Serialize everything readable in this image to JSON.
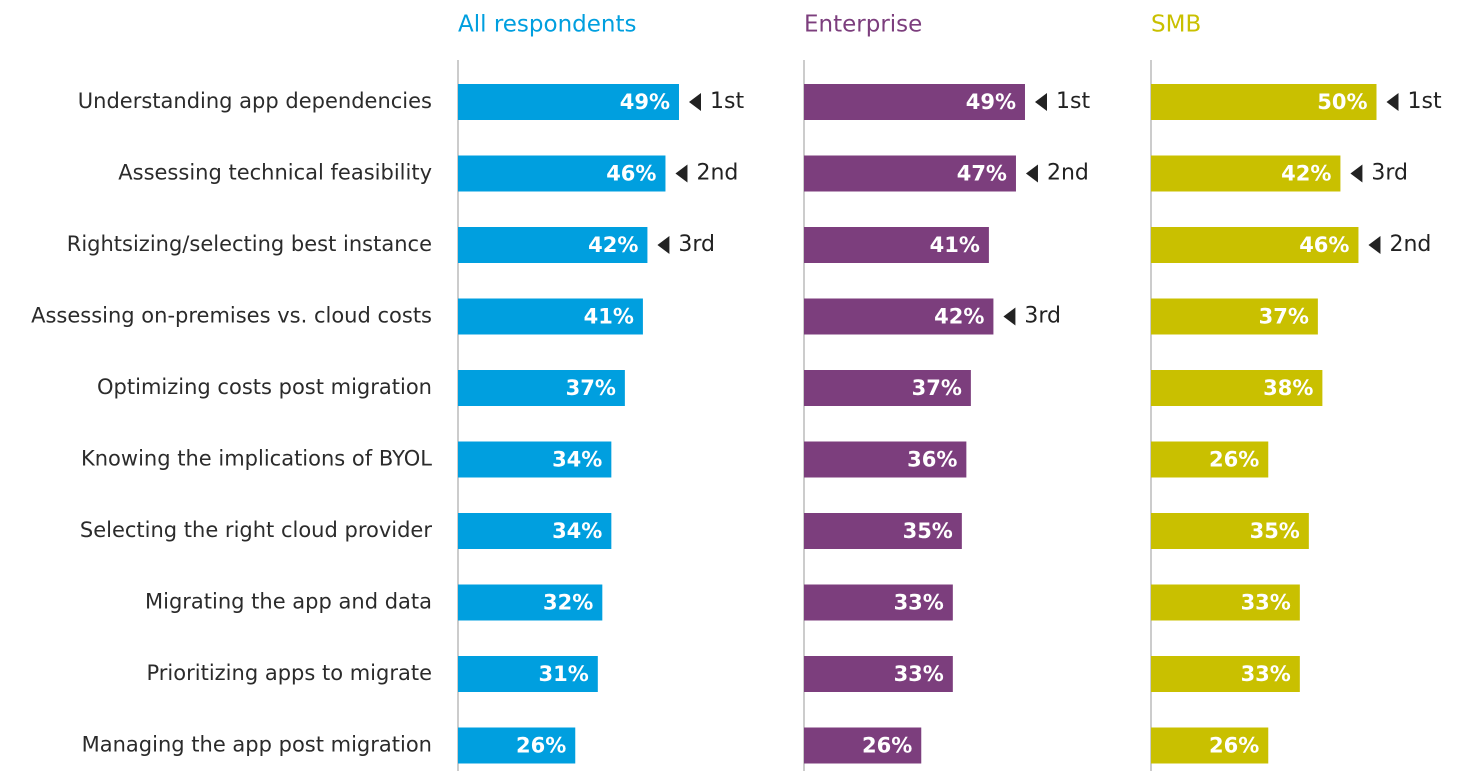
{
  "chart_data": {
    "type": "bar",
    "orientation": "horizontal",
    "categories": [
      "Understanding app dependencies",
      "Assessing technical feasibility",
      "Rightsizing/selecting best instance",
      "Assessing on-premises vs. cloud costs",
      "Optimizing costs post migration",
      "Knowing the implications of BYOL",
      "Selecting the right cloud provider",
      "Migrating the app and data",
      "Prioritizing apps to migrate",
      "Managing the app post migration"
    ],
    "xlim": [
      0,
      100
    ],
    "series": [
      {
        "name": "All respondents",
        "color": "#009fdf",
        "values": [
          49,
          46,
          42,
          41,
          37,
          34,
          34,
          32,
          31,
          26
        ],
        "value_labels": [
          "49%",
          "46%",
          "42%",
          "41%",
          "37%",
          "34%",
          "34%",
          "32%",
          "31%",
          "26%"
        ],
        "ranks": [
          "1st",
          "2nd",
          "3rd",
          null,
          null,
          null,
          null,
          null,
          null,
          null
        ]
      },
      {
        "name": "Enterprise",
        "color": "#7c3e7d",
        "values": [
          49,
          47,
          41,
          42,
          37,
          36,
          35,
          33,
          33,
          26
        ],
        "value_labels": [
          "49%",
          "47%",
          "41%",
          "42%",
          "37%",
          "36%",
          "35%",
          "33%",
          "33%",
          "26%"
        ],
        "ranks": [
          "1st",
          "2nd",
          null,
          "3rd",
          null,
          null,
          null,
          null,
          null,
          null
        ]
      },
      {
        "name": "SMB",
        "color": "#c9c000",
        "values": [
          50,
          42,
          46,
          37,
          38,
          26,
          35,
          33,
          33,
          26
        ],
        "value_labels": [
          "50%",
          "42%",
          "46%",
          "37%",
          "38%",
          "26%",
          "35%",
          "33%",
          "33%",
          "26%"
        ],
        "ranks": [
          "1st",
          "3rd",
          "2nd",
          null,
          null,
          null,
          null,
          null,
          null,
          null
        ]
      }
    ]
  }
}
